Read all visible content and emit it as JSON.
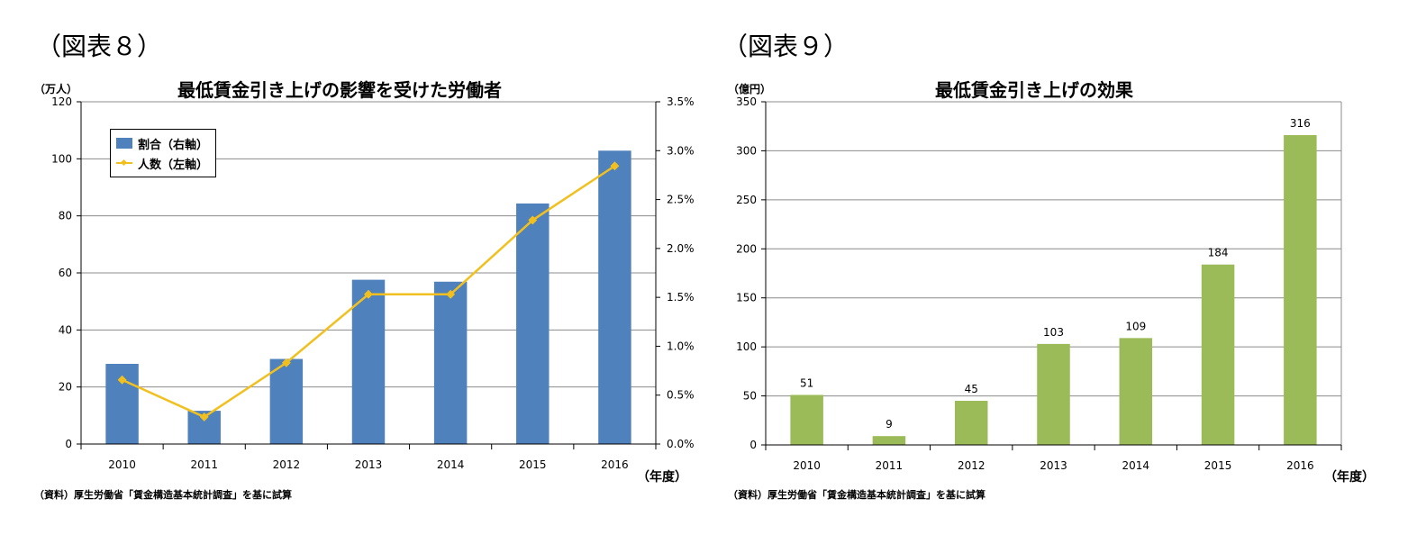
{
  "left": {
    "figure_label": "（図表８）",
    "unit_left": "（万人）",
    "year_unit": "（年度）",
    "source": "（資料）厚生労働省「賃金構造基本統計調査」を基に試算",
    "legend": {
      "bar_label": "割合（右軸）",
      "line_label": "人数（左軸）"
    }
  },
  "right": {
    "figure_label": "（図表９）",
    "unit_left": "（億円）",
    "year_unit": "（年度）",
    "source": "（資料）厚生労働省「賃金構造基本統計調査」を基に試算"
  },
  "colors": {
    "blue_bar": "#4f81bd",
    "yellow_line": "#f2c01e",
    "green_bar": "#9bbb59",
    "grid": "#8c8c8c"
  },
  "chart_data": [
    {
      "type": "bar",
      "title": "最低賃金引き上げの影響を受けた労働者",
      "categories": [
        "2010",
        "2011",
        "2012",
        "2013",
        "2014",
        "2015",
        "2016"
      ],
      "y_left": {
        "ylim": [
          0,
          120
        ],
        "ticks": [
          "0",
          "20",
          "40",
          "60",
          "80",
          "100",
          "120"
        ]
      },
      "y_right": {
        "ylim": [
          0,
          3.5
        ],
        "ticks": [
          "0.0%",
          "0.5%",
          "1.0%",
          "1.5%",
          "2.0%",
          "2.5%",
          "3.0%",
          "3.5%"
        ]
      },
      "series": [
        {
          "name": "割合（右軸）",
          "type": "bar",
          "axis": "right",
          "values": [
            0.82,
            0.34,
            0.87,
            1.68,
            1.66,
            2.46,
            3.0
          ]
        },
        {
          "name": "人数（左軸）",
          "type": "line",
          "axis": "left",
          "values": [
            22.5,
            9.5,
            28.5,
            52.5,
            52.5,
            78.5,
            97.5
          ]
        }
      ],
      "legend_position": "top-left",
      "grid": true
    },
    {
      "type": "bar",
      "title": "最低賃金引き上げの効果",
      "categories": [
        "2010",
        "2011",
        "2012",
        "2013",
        "2014",
        "2015",
        "2016"
      ],
      "y_left": {
        "ylim": [
          0,
          350
        ],
        "ticks": [
          "0",
          "50",
          "100",
          "150",
          "200",
          "250",
          "300",
          "350"
        ]
      },
      "series": [
        {
          "type": "bar",
          "values": [
            51,
            9,
            45,
            103,
            109,
            184,
            316
          ],
          "labels": [
            "51",
            "9",
            "45",
            "103",
            "109",
            "184",
            "316"
          ]
        }
      ],
      "grid": true
    }
  ]
}
